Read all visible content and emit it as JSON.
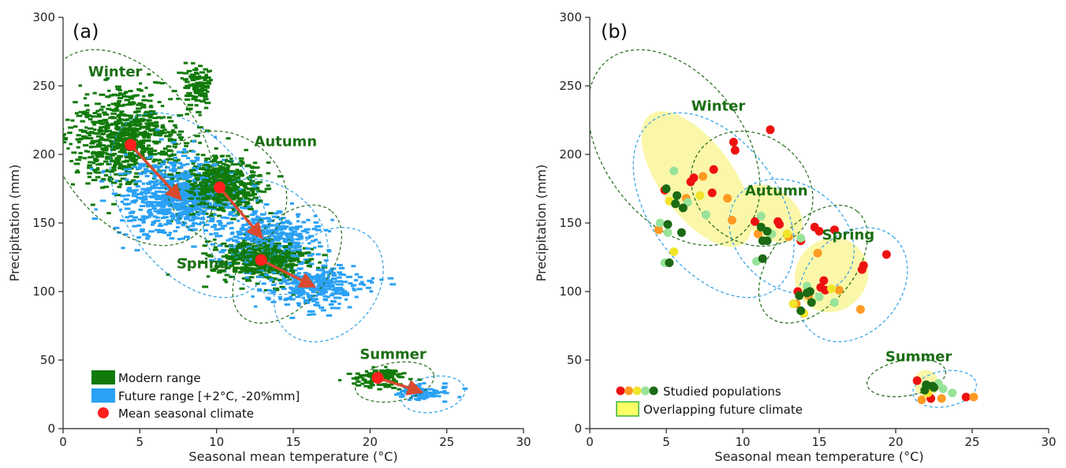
{
  "colors": {
    "modern": "#117a0a",
    "future": "#2aa1f5",
    "mean": "#ff1f1f",
    "arrow": "#d94a2e",
    "ellipse_modern": "#1f6b14",
    "ellipse_future": "#2e9fe6",
    "overlap_fill": "#fbf7a9",
    "season_label": "#1a6e12",
    "studied": [
      "#ee1111",
      "#ff9a22",
      "#f0e52a",
      "#98e39a",
      "#1b6a14"
    ]
  },
  "chart_data": [
    {
      "panel": "(a)",
      "type": "scatter",
      "xlabel": "Seasonal mean temperature (°C)",
      "ylabel": "Precipitation (mm)",
      "xlim": [
        0,
        30
      ],
      "ylim": [
        0,
        300
      ],
      "xticks": [
        0,
        5,
        10,
        15,
        20,
        25,
        30
      ],
      "yticks": [
        0,
        50,
        100,
        150,
        200,
        250,
        300
      ],
      "grid": false,
      "legend_placement": "bottom-left",
      "legend": [
        "Modern range",
        "Future range [+2°C, -20%mm]",
        "Mean seasonal climate"
      ],
      "seasons": [
        {
          "name": "Winter",
          "label_at": [
            3.4,
            257
          ],
          "modern_mean": [
            4.4,
            207
          ],
          "future_mean": [
            7.6,
            168
          ],
          "modern_ellipse": {
            "cx": 4.3,
            "cy": 205,
            "rx": 4.6,
            "ry": 80,
            "angle_deg": 36
          },
          "future_ellipse": {
            "cx": 8.3,
            "cy": 163,
            "rx": 4.2,
            "ry": 76,
            "angle_deg": 36
          }
        },
        {
          "name": "Autumn",
          "label_at": [
            14.5,
            206
          ],
          "modern_mean": [
            10.2,
            176
          ],
          "future_mean": [
            12.9,
            140
          ],
          "modern_ellipse": {
            "cx": 10.6,
            "cy": 175,
            "rx": 3.5,
            "ry": 47,
            "angle_deg": 54
          },
          "future_ellipse": {
            "cx": 13.2,
            "cy": 140,
            "rx": 3.4,
            "ry": 49,
            "angle_deg": 54
          }
        },
        {
          "name": "Spring",
          "label_at": [
            9.1,
            117
          ],
          "modern_mean": [
            12.9,
            123
          ],
          "future_mean": [
            16.3,
            104
          ],
          "modern_ellipse": {
            "cx": 14.6,
            "cy": 120,
            "rx": 4.5,
            "ry": 30,
            "angle_deg": 50
          },
          "future_ellipse": {
            "cx": 17.3,
            "cy": 105,
            "rx": 4.1,
            "ry": 35,
            "angle_deg": 50
          }
        },
        {
          "name": "Summer",
          "label_at": [
            21.5,
            51
          ],
          "modern_mean": [
            20.5,
            37
          ],
          "future_mean": [
            23.3,
            27
          ],
          "modern_ellipse": {
            "cx": 21.6,
            "cy": 34,
            "rx": 2.6,
            "ry": 14,
            "angle_deg": 10
          },
          "future_ellipse": {
            "cx": 24.1,
            "cy": 25,
            "rx": 2.1,
            "ry": 13,
            "angle_deg": 10
          }
        }
      ],
      "modern_range_clusters": [
        {
          "cx": 4.1,
          "cy": 212,
          "sx": 1.7,
          "sy": 17
        },
        {
          "cx": 10.3,
          "cy": 175,
          "sx": 1.4,
          "sy": 11
        },
        {
          "cx": 12.9,
          "cy": 123,
          "sx": 1.6,
          "sy": 8
        },
        {
          "cx": 20.6,
          "cy": 37,
          "sx": 0.9,
          "sy": 4
        },
        {
          "cx": 8.8,
          "cy": 250,
          "sx": 0.5,
          "sy": 8
        }
      ],
      "future_range_clusters": [
        {
          "cx": 7.3,
          "cy": 170,
          "sx": 1.8,
          "sy": 15
        },
        {
          "cx": 13.3,
          "cy": 140,
          "sx": 1.6,
          "sy": 9
        },
        {
          "cx": 16.2,
          "cy": 104,
          "sx": 1.6,
          "sy": 8
        },
        {
          "cx": 23.4,
          "cy": 27,
          "sx": 1.0,
          "sy": 3
        }
      ]
    },
    {
      "panel": "(b)",
      "type": "scatter",
      "xlabel": "Seasonal mean temperature (°C)",
      "ylabel": "Precipitation (mm)",
      "xlim": [
        0,
        30
      ],
      "ylim": [
        0,
        300
      ],
      "xticks": [
        0,
        5,
        10,
        15,
        20,
        25,
        30
      ],
      "yticks": [
        0,
        50,
        100,
        150,
        200,
        250,
        300
      ],
      "grid": false,
      "legend_placement": "bottom-left",
      "legend": [
        "Studied populations",
        "Overlapping future climate"
      ],
      "seasons": [
        {
          "name": "Winter",
          "label_at": [
            8.4,
            232
          ],
          "modern_ellipse": {
            "cx": 5.5,
            "cy": 205,
            "rx": 4.6,
            "ry": 80,
            "angle_deg": 36
          },
          "future_ellipse": {
            "cx": 8.1,
            "cy": 163,
            "rx": 4.2,
            "ry": 76,
            "angle_deg": 36
          },
          "overlap": {
            "cx": 7.0,
            "cy": 182,
            "rx": 2.4,
            "ry": 58,
            "angle_deg": 36
          }
        },
        {
          "name": "Autumn",
          "label_at": [
            12.2,
            170
          ],
          "modern_ellipse": {
            "cx": 10.6,
            "cy": 175,
            "rx": 3.5,
            "ry": 47,
            "angle_deg": 54
          },
          "future_ellipse": {
            "cx": 13.2,
            "cy": 140,
            "rx": 3.4,
            "ry": 49,
            "angle_deg": 54
          },
          "overlap": {
            "cx": 11.8,
            "cy": 157,
            "rx": 1.6,
            "ry": 26,
            "angle_deg": 54
          }
        },
        {
          "name": "Spring",
          "label_at": [
            16.9,
            138
          ],
          "modern_ellipse": {
            "cx": 14.6,
            "cy": 120,
            "rx": 4.5,
            "ry": 30,
            "angle_deg": 50
          },
          "future_ellipse": {
            "cx": 17.2,
            "cy": 105,
            "rx": 4.1,
            "ry": 35,
            "angle_deg": 50
          },
          "overlap": {
            "cx": 15.8,
            "cy": 112,
            "rx": 2.5,
            "ry": 26,
            "angle_deg": 50
          }
        },
        {
          "name": "Summer",
          "label_at": [
            21.5,
            49
          ],
          "modern_ellipse": {
            "cx": 20.7,
            "cy": 37,
            "rx": 2.6,
            "ry": 13,
            "angle_deg": 10
          },
          "future_ellipse": {
            "cx": 23.2,
            "cy": 29,
            "rx": 2.1,
            "ry": 13,
            "angle_deg": 10
          },
          "overlap": {
            "cx": 22.0,
            "cy": 33,
            "rx": 0.8,
            "ry": 10,
            "angle_deg": 10
          }
        }
      ],
      "studied_populations": [
        {
          "x": 11.8,
          "y": 218,
          "c": 0
        },
        {
          "x": 9.4,
          "y": 209,
          "c": 0
        },
        {
          "x": 9.5,
          "y": 203,
          "c": 0
        },
        {
          "x": 8.1,
          "y": 189,
          "c": 0
        },
        {
          "x": 6.8,
          "y": 183,
          "c": 0
        },
        {
          "x": 6.6,
          "y": 180,
          "c": 0
        },
        {
          "x": 4.9,
          "y": 174,
          "c": 0
        },
        {
          "x": 8.0,
          "y": 172,
          "c": 0
        },
        {
          "x": 10.8,
          "y": 151,
          "c": 0
        },
        {
          "x": 12.3,
          "y": 151,
          "c": 0
        },
        {
          "x": 12.4,
          "y": 149,
          "c": 0
        },
        {
          "x": 14.7,
          "y": 147,
          "c": 0
        },
        {
          "x": 15.0,
          "y": 144,
          "c": 0
        },
        {
          "x": 16.0,
          "y": 145,
          "c": 0
        },
        {
          "x": 13.8,
          "y": 137,
          "c": 0
        },
        {
          "x": 19.4,
          "y": 127,
          "c": 0
        },
        {
          "x": 17.9,
          "y": 119,
          "c": 0
        },
        {
          "x": 17.8,
          "y": 116,
          "c": 0
        },
        {
          "x": 15.3,
          "y": 108,
          "c": 0
        },
        {
          "x": 15.1,
          "y": 103,
          "c": 0
        },
        {
          "x": 15.4,
          "y": 101,
          "c": 0
        },
        {
          "x": 13.6,
          "y": 100,
          "c": 0
        },
        {
          "x": 21.4,
          "y": 35,
          "c": 0
        },
        {
          "x": 22.3,
          "y": 22,
          "c": 0
        },
        {
          "x": 24.6,
          "y": 23,
          "c": 0
        },
        {
          "x": 6.3,
          "y": 168,
          "c": 1
        },
        {
          "x": 9.0,
          "y": 168,
          "c": 1
        },
        {
          "x": 4.5,
          "y": 145,
          "c": 1
        },
        {
          "x": 9.3,
          "y": 152,
          "c": 1
        },
        {
          "x": 7.4,
          "y": 184,
          "c": 1
        },
        {
          "x": 11.0,
          "y": 142,
          "c": 1
        },
        {
          "x": 13.0,
          "y": 140,
          "c": 1
        },
        {
          "x": 14.9,
          "y": 128,
          "c": 1
        },
        {
          "x": 16.3,
          "y": 101,
          "c": 1
        },
        {
          "x": 17.7,
          "y": 87,
          "c": 1
        },
        {
          "x": 13.5,
          "y": 91,
          "c": 1
        },
        {
          "x": 14.3,
          "y": 97,
          "c": 1
        },
        {
          "x": 21.7,
          "y": 21,
          "c": 1
        },
        {
          "x": 23.0,
          "y": 22,
          "c": 1
        },
        {
          "x": 25.1,
          "y": 23,
          "c": 1
        },
        {
          "x": 22.6,
          "y": 31,
          "c": 1
        },
        {
          "x": 5.5,
          "y": 129,
          "c": 2
        },
        {
          "x": 7.2,
          "y": 170,
          "c": 2
        },
        {
          "x": 5.2,
          "y": 166,
          "c": 2
        },
        {
          "x": 12.9,
          "y": 142,
          "c": 2
        },
        {
          "x": 13.3,
          "y": 91,
          "c": 2
        },
        {
          "x": 14.0,
          "y": 84,
          "c": 2
        },
        {
          "x": 15.8,
          "y": 102,
          "c": 2
        },
        {
          "x": 22.1,
          "y": 26,
          "c": 2
        },
        {
          "x": 5.5,
          "y": 188,
          "c": 3
        },
        {
          "x": 4.6,
          "y": 150,
          "c": 3
        },
        {
          "x": 5.1,
          "y": 143,
          "c": 3
        },
        {
          "x": 6.4,
          "y": 165,
          "c": 3
        },
        {
          "x": 7.6,
          "y": 156,
          "c": 3
        },
        {
          "x": 4.9,
          "y": 121,
          "c": 3
        },
        {
          "x": 11.2,
          "y": 155,
          "c": 3
        },
        {
          "x": 11.9,
          "y": 142,
          "c": 3
        },
        {
          "x": 10.9,
          "y": 122,
          "c": 3
        },
        {
          "x": 13.8,
          "y": 139,
          "c": 3
        },
        {
          "x": 15.0,
          "y": 96,
          "c": 3
        },
        {
          "x": 16.0,
          "y": 92,
          "c": 3
        },
        {
          "x": 14.2,
          "y": 104,
          "c": 3
        },
        {
          "x": 23.1,
          "y": 29,
          "c": 3
        },
        {
          "x": 23.7,
          "y": 26,
          "c": 3
        },
        {
          "x": 22.8,
          "y": 33,
          "c": 3
        },
        {
          "x": 5.0,
          "y": 175,
          "c": 4
        },
        {
          "x": 5.7,
          "y": 170,
          "c": 4
        },
        {
          "x": 5.6,
          "y": 164,
          "c": 4
        },
        {
          "x": 6.1,
          "y": 161,
          "c": 4
        },
        {
          "x": 5.1,
          "y": 149,
          "c": 4
        },
        {
          "x": 6.0,
          "y": 143,
          "c": 4
        },
        {
          "x": 5.2,
          "y": 121,
          "c": 4
        },
        {
          "x": 11.2,
          "y": 147,
          "c": 4
        },
        {
          "x": 11.6,
          "y": 144,
          "c": 4
        },
        {
          "x": 11.3,
          "y": 137,
          "c": 4
        },
        {
          "x": 11.6,
          "y": 137,
          "c": 4
        },
        {
          "x": 11.3,
          "y": 124,
          "c": 4
        },
        {
          "x": 13.7,
          "y": 97,
          "c": 4
        },
        {
          "x": 14.4,
          "y": 100,
          "c": 4
        },
        {
          "x": 14.5,
          "y": 92,
          "c": 4
        },
        {
          "x": 13.8,
          "y": 86,
          "c": 4
        },
        {
          "x": 14.2,
          "y": 99,
          "c": 4
        },
        {
          "x": 22.0,
          "y": 32,
          "c": 4
        },
        {
          "x": 22.5,
          "y": 30,
          "c": 4
        },
        {
          "x": 21.9,
          "y": 28,
          "c": 4
        },
        {
          "x": 22.4,
          "y": 31,
          "c": 4
        }
      ]
    }
  ]
}
